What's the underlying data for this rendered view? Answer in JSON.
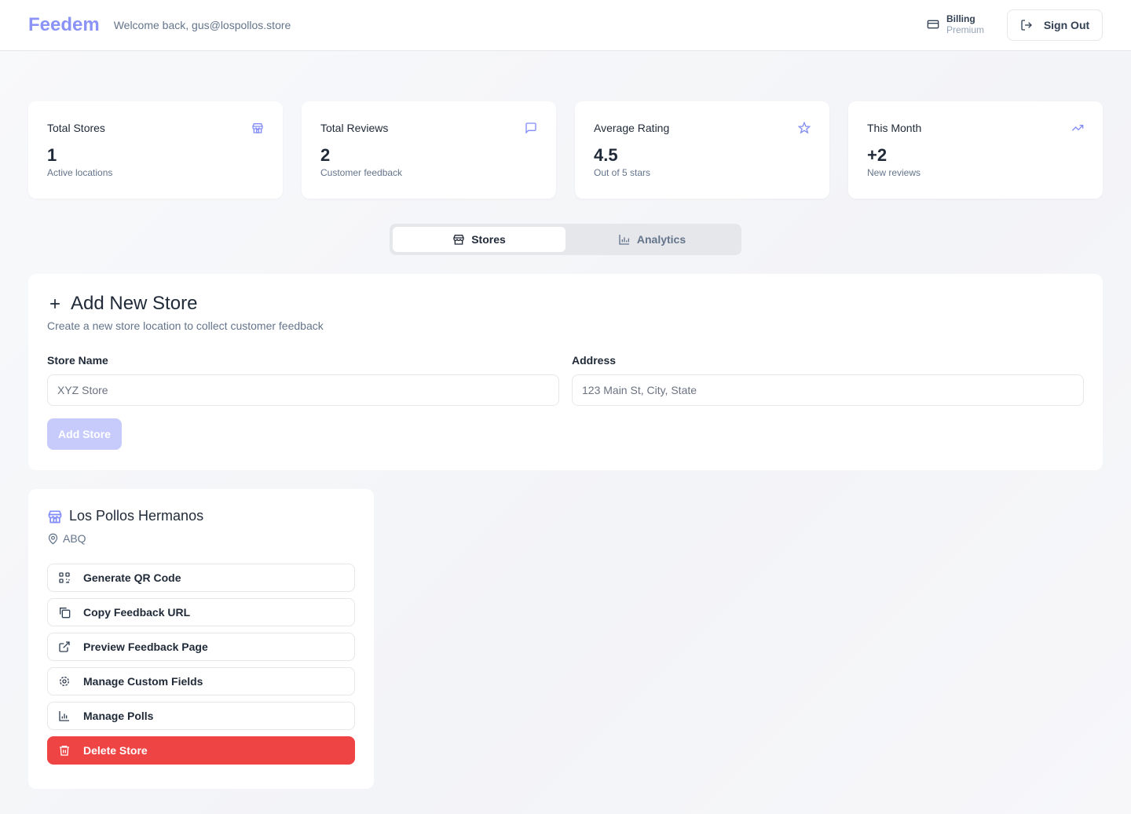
{
  "header": {
    "logo": "Feedem",
    "welcome": "Welcome back, gus@lospollos.store",
    "billing_label": "Billing",
    "billing_plan": "Premium",
    "signout": "Sign Out"
  },
  "stats": [
    {
      "label": "Total Stores",
      "value": "1",
      "sub": "Active locations",
      "icon": "store-icon"
    },
    {
      "label": "Total Reviews",
      "value": "2",
      "sub": "Customer feedback",
      "icon": "message-icon"
    },
    {
      "label": "Average Rating",
      "value": "4.5",
      "sub": "Out of 5 stars",
      "icon": "star-icon"
    },
    {
      "label": "This Month",
      "value": "+2",
      "sub": "New reviews",
      "icon": "trending-up-icon"
    }
  ],
  "tabs": [
    {
      "label": "Stores",
      "active": true
    },
    {
      "label": "Analytics",
      "active": false
    }
  ],
  "add_store": {
    "title": "Add New Store",
    "description": "Create a new store location to collect customer feedback",
    "name_label": "Store Name",
    "name_placeholder": "XYZ Store",
    "address_label": "Address",
    "address_placeholder": "123 Main St, City, State",
    "button": "Add Store"
  },
  "store": {
    "name": "Los Pollos Hermanos",
    "location": "ABQ",
    "actions": [
      "Generate QR Code",
      "Copy Feedback URL",
      "Preview Feedback Page",
      "Manage Custom Fields",
      "Manage Polls",
      "Delete Store"
    ]
  },
  "colors": {
    "accent": "#818cf8",
    "danger": "#ef4444"
  }
}
